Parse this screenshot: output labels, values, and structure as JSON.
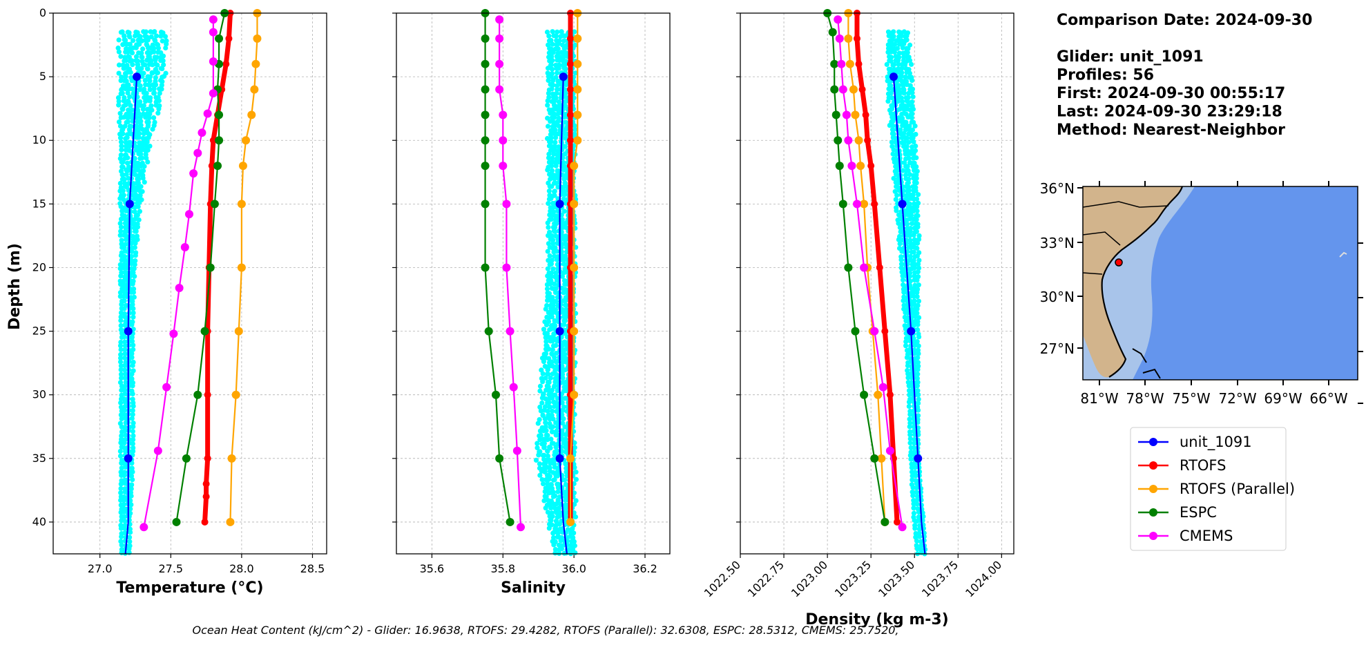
{
  "chart_data": [
    {
      "type": "line",
      "xlabel": "Temperature (°C)",
      "ylabel": "Depth (m)",
      "xlim": [
        26.67,
        28.6
      ],
      "ylim": [
        42.5,
        0
      ],
      "xticks": [
        "27.0",
        "27.5",
        "28.0",
        "28.5"
      ],
      "yticks": [
        "0",
        "5",
        "10",
        "15",
        "20",
        "25",
        "30",
        "35",
        "40"
      ],
      "grid": true,
      "glider_cloud": {
        "name": "unit_1091 profiles",
        "x_min": [
          27.15,
          27.15,
          27.15,
          27.15,
          27.15,
          27.15,
          27.15,
          27.15,
          27.15,
          27.15
        ],
        "x_max": [
          27.45,
          27.45,
          27.35,
          27.28,
          27.24,
          27.23,
          27.23,
          27.23,
          27.21,
          27.21
        ],
        "y": [
          1.5,
          5,
          10,
          15,
          20,
          25,
          30,
          35,
          40,
          42.5
        ]
      },
      "series": [
        {
          "name": "unit_1091",
          "color": "#0000ff",
          "x": [
            27.26,
            27.21,
            27.2,
            27.2,
            27.2,
            27.18
          ],
          "y": [
            5,
            15,
            25,
            35,
            40,
            42.5
          ],
          "markers": [
            true,
            true,
            true,
            true,
            false,
            false
          ]
        },
        {
          "name": "RTOFS",
          "color": "#ff0000",
          "x": [
            27.92,
            27.91,
            27.89,
            27.86,
            27.83,
            27.8,
            27.79,
            27.78,
            27.77,
            27.76,
            27.76,
            27.76,
            27.75,
            27.75,
            27.74
          ],
          "y": [
            0,
            2,
            4,
            6,
            8,
            10,
            12,
            15,
            20,
            25,
            30,
            35,
            37,
            38,
            40
          ]
        },
        {
          "name": "RTOFS (Parallel)",
          "color": "#ffa500",
          "x": [
            28.11,
            28.11,
            28.1,
            28.09,
            28.07,
            28.03,
            28.01,
            28.0,
            28.0,
            27.98,
            27.96,
            27.93,
            27.92
          ],
          "y": [
            0,
            2,
            4,
            6,
            8,
            10,
            12,
            15,
            20,
            25,
            30,
            35,
            40
          ]
        },
        {
          "name": "ESPC",
          "color": "#008000",
          "x": [
            27.88,
            27.84,
            27.84,
            27.83,
            27.84,
            27.84,
            27.83,
            27.81,
            27.78,
            27.74,
            27.69,
            27.61,
            27.54
          ],
          "y": [
            0,
            2,
            4,
            6,
            8,
            10,
            12,
            15,
            20,
            25,
            30,
            35,
            40
          ]
        },
        {
          "name": "CMEMS",
          "color": "#ff00ff",
          "x": [
            27.8,
            27.8,
            27.8,
            27.8,
            27.76,
            27.72,
            27.69,
            27.66,
            27.63,
            27.6,
            27.56,
            27.52,
            27.47,
            27.41,
            27.31
          ],
          "y": [
            0.5,
            1.5,
            3.8,
            6.3,
            7.9,
            9.4,
            11,
            12.6,
            15.8,
            18.4,
            21.6,
            25.2,
            29.4,
            34.4,
            40.4
          ]
        }
      ]
    },
    {
      "type": "line",
      "xlabel": "Salinity",
      "xlim": [
        35.5,
        36.27
      ],
      "ylim": [
        42.5,
        0
      ],
      "xticks": [
        "35.6",
        "35.8",
        "36.0",
        "36.2"
      ],
      "grid": true,
      "glider_cloud": {
        "name": "unit_1091 profiles",
        "x_min": [
          35.93,
          35.93,
          35.93,
          35.93,
          35.93,
          35.92,
          35.91,
          35.9,
          35.93,
          35.95
        ],
        "x_max": [
          36.0,
          36.0,
          36.0,
          36.0,
          36.0,
          36.0,
          36.0,
          36.0,
          36.0,
          36.0
        ],
        "y": [
          1.5,
          5,
          10,
          15,
          20,
          25,
          30,
          35,
          40,
          42.5
        ]
      },
      "series": [
        {
          "name": "unit_1091",
          "color": "#0000ff",
          "x": [
            35.97,
            35.96,
            35.96,
            35.96,
            35.97,
            35.98
          ],
          "y": [
            5,
            15,
            25,
            35,
            40,
            42.5
          ],
          "markers": [
            true,
            true,
            true,
            true,
            false,
            false
          ]
        },
        {
          "name": "RTOFS",
          "color": "#ff0000",
          "x": [
            35.99,
            35.99,
            35.99,
            35.99,
            35.99,
            35.99,
            35.99,
            35.99,
            35.99,
            35.99,
            35.99,
            35.99,
            35.99
          ],
          "y": [
            0,
            2,
            4,
            6,
            8,
            10,
            12,
            15,
            20,
            25,
            30,
            35,
            40
          ]
        },
        {
          "name": "RTOFS (Parallel)",
          "color": "#ffa500",
          "x": [
            36.01,
            36.01,
            36.01,
            36.01,
            36.01,
            36.01,
            36.0,
            36.0,
            36.0,
            36.0,
            36.0,
            35.99,
            35.99
          ],
          "y": [
            0,
            2,
            4,
            6,
            8,
            10,
            12,
            15,
            20,
            25,
            30,
            35,
            40
          ]
        },
        {
          "name": "ESPC",
          "color": "#008000",
          "x": [
            35.75,
            35.75,
            35.75,
            35.75,
            35.75,
            35.75,
            35.75,
            35.75,
            35.75,
            35.76,
            35.78,
            35.79,
            35.82
          ],
          "y": [
            0,
            2,
            4,
            6,
            8,
            10,
            12,
            15,
            20,
            25,
            30,
            35,
            40
          ]
        },
        {
          "name": "CMEMS",
          "color": "#ff00ff",
          "x": [
            35.79,
            35.79,
            35.79,
            35.79,
            35.8,
            35.8,
            35.8,
            35.81,
            35.81,
            35.82,
            35.83,
            35.84,
            35.85
          ],
          "y": [
            0.5,
            2,
            4,
            6,
            8,
            10,
            12,
            15,
            20,
            25,
            29.4,
            34.4,
            40.4
          ]
        }
      ]
    },
    {
      "type": "line",
      "xlabel": "Density (kg m-3)",
      "xlim": [
        1022.5,
        1024.07
      ],
      "ylim": [
        42.5,
        0
      ],
      "xticks": [
        "1022.50",
        "1022.75",
        "1023.00",
        "1023.25",
        "1023.50",
        "1023.75",
        "1024.00"
      ],
      "grid": true,
      "glider_cloud": {
        "name": "unit_1091 profiles",
        "x_min": [
          1023.35,
          1023.35,
          1023.37,
          1023.4,
          1023.43,
          1023.45,
          1023.47,
          1023.48,
          1023.5,
          1023.52
        ],
        "x_max": [
          1023.46,
          1023.48,
          1023.5,
          1023.52,
          1023.52,
          1023.52,
          1023.52,
          1023.52,
          1023.55,
          1023.56
        ],
        "y": [
          1.5,
          5,
          10,
          15,
          20,
          25,
          30,
          35,
          40,
          42.5
        ]
      },
      "series": [
        {
          "name": "unit_1091",
          "color": "#0000ff",
          "x": [
            1023.38,
            1023.43,
            1023.48,
            1023.52,
            1023.54,
            1023.56
          ],
          "y": [
            5,
            15,
            25,
            35,
            40,
            42.5
          ],
          "markers": [
            true,
            true,
            true,
            true,
            false,
            false
          ]
        },
        {
          "name": "RTOFS",
          "color": "#ff0000",
          "x": [
            1023.17,
            1023.17,
            1023.18,
            1023.2,
            1023.22,
            1023.23,
            1023.25,
            1023.27,
            1023.3,
            1023.33,
            1023.36,
            1023.38,
            1023.4
          ],
          "y": [
            0,
            2,
            4,
            6,
            8,
            10,
            12,
            15,
            20,
            25,
            30,
            35,
            40
          ]
        },
        {
          "name": "RTOFS (Parallel)",
          "color": "#ffa500",
          "x": [
            1023.12,
            1023.12,
            1023.13,
            1023.15,
            1023.16,
            1023.18,
            1023.19,
            1023.21,
            1023.23,
            1023.26,
            1023.29,
            1023.31,
            1023.33
          ],
          "y": [
            0,
            2,
            4,
            6,
            8,
            10,
            12,
            15,
            20,
            25,
            30,
            35,
            40
          ]
        },
        {
          "name": "ESPC",
          "color": "#008000",
          "x": [
            1023.0,
            1023.03,
            1023.04,
            1023.04,
            1023.05,
            1023.06,
            1023.07,
            1023.09,
            1023.12,
            1023.16,
            1023.21,
            1023.27,
            1023.33
          ],
          "y": [
            0,
            1.5,
            4,
            6,
            8,
            10,
            12,
            15,
            20,
            25,
            30,
            35,
            40
          ]
        },
        {
          "name": "CMEMS",
          "color": "#ff00ff",
          "x": [
            1023.06,
            1023.07,
            1023.08,
            1023.09,
            1023.11,
            1023.12,
            1023.14,
            1023.17,
            1023.21,
            1023.27,
            1023.32,
            1023.36,
            1023.43
          ],
          "y": [
            0.5,
            2,
            4,
            6,
            8,
            10,
            12,
            15,
            20,
            25,
            29.4,
            34.4,
            40.4
          ]
        }
      ]
    }
  ],
  "info": {
    "lines": [
      "Comparison Date: 2024-09-30",
      "",
      "Glider: unit_1091",
      "Profiles: 56",
      "First: 2024-09-30 00:55:17",
      "Last: 2024-09-30 23:29:18",
      "Method: Nearest-Neighbor"
    ]
  },
  "map": {
    "lat_labels": [
      "36°N",
      "33°N",
      "30°N",
      "27°N"
    ],
    "lon_labels": [
      "81°W",
      "78°W",
      "75°W",
      "72°W",
      "69°W",
      "66°W"
    ],
    "colors": {
      "land": "#d2b48c",
      "ocean": "#6495ed",
      "shelf": "#a8c4ea",
      "glider": "#ff0000"
    }
  },
  "legend": {
    "placement": "bottom-right",
    "entries": [
      {
        "label": "unit_1091",
        "color": "#0000ff"
      },
      {
        "label": "RTOFS",
        "color": "#ff0000"
      },
      {
        "label": "RTOFS (Parallel)",
        "color": "#ffa500"
      },
      {
        "label": "ESPC",
        "color": "#008000"
      },
      {
        "label": "CMEMS",
        "color": "#ff00ff"
      }
    ]
  },
  "footer": "Ocean Heat Content (kJ/cm^2) - Glider: 16.9638,  RTOFS: 29.4282,  RTOFS (Parallel): 32.6308,  ESPC: 28.5312,  CMEMS: 25.7520,",
  "colors": {
    "glider_cloud": "#00ffff",
    "grid": "#b0b0b0"
  }
}
